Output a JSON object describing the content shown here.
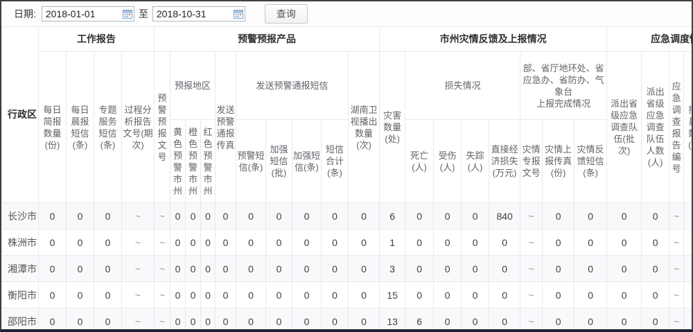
{
  "toolbar": {
    "date_label": "日期:",
    "date_from": "2018-01-01",
    "to_label": "至",
    "date_to": "2018-10-31",
    "query_button": "查询"
  },
  "colors": {
    "input_border": "#a9b7c7",
    "grid_line": "#e8e9ec",
    "row_stripe": "#f8f9fb",
    "frame_border": "#3f3f3f"
  },
  "table": {
    "corner_label": "行政区",
    "groups": [
      "工作报告",
      "预警预报产品",
      "市州灾情反馈及上报情况",
      "应急调度情况"
    ],
    "row2": [
      "每日简报数量(份)",
      "每日晨报短信(条)",
      "专题服务短信(条)",
      "过程分析报告文号(期次)",
      "预警预报文号",
      "预报地区",
      "发送预警通报传真",
      "发送预警通报短信",
      "湖南卫视播出数量(次)",
      "灾害数量(处)",
      "损失情况",
      "部、省厅地环处、省应急办、省防办、气象台\n上报完成情况",
      "派出省级应急调查队伍(批次)",
      "派出省级应急调查队伍人数(人)",
      "应急调查报告编号",
      "排查县区数量(个)"
    ],
    "row3": [
      "黄色预警市州",
      "橙色预警市州",
      "红色预警市州",
      "预警短信(条)",
      "加强短信(批)",
      "加强短信(条)",
      "短信合计(条)",
      "死亡(人)",
      "受伤(人)",
      "失踪(人)",
      "直接经济损失(万元)",
      "灾情专报文号",
      "灾情上报传真(份)",
      "灾情反馈短信(条)"
    ],
    "rows": [
      {
        "region": "长沙市",
        "values": [
          "0",
          "0",
          "0",
          "~",
          "~",
          "0",
          "0",
          "0",
          "0",
          "0",
          "0",
          "0",
          "0",
          "0",
          "6",
          "0",
          "0",
          "0",
          "840",
          "~",
          "0",
          "0",
          "0",
          "0",
          "~"
        ]
      },
      {
        "region": "株洲市",
        "values": [
          "0",
          "0",
          "0",
          "~",
          "~",
          "0",
          "0",
          "0",
          "0",
          "0",
          "0",
          "0",
          "0",
          "0",
          "1",
          "0",
          "0",
          "0",
          "0",
          "~",
          "0",
          "0",
          "0",
          "0",
          "~"
        ]
      },
      {
        "region": "湘潭市",
        "values": [
          "0",
          "0",
          "0",
          "~",
          "~",
          "0",
          "0",
          "0",
          "0",
          "0",
          "0",
          "0",
          "0",
          "0",
          "3",
          "0",
          "0",
          "0",
          "0",
          "~",
          "0",
          "0",
          "0",
          "0",
          "~"
        ]
      },
      {
        "region": "衡阳市",
        "values": [
          "0",
          "0",
          "0",
          "~",
          "~",
          "0",
          "0",
          "0",
          "0",
          "0",
          "0",
          "0",
          "0",
          "0",
          "15",
          "0",
          "0",
          "0",
          "0",
          "~",
          "0",
          "0",
          "0",
          "0",
          "~"
        ]
      },
      {
        "region": "邵阳市",
        "values": [
          "0",
          "0",
          "0",
          "~",
          "~",
          "0",
          "0",
          "0",
          "0",
          "0",
          "0",
          "0",
          "0",
          "0",
          "13",
          "6",
          "0",
          "0",
          "0",
          "~",
          "0",
          "0",
          "0",
          "0",
          "~"
        ]
      }
    ]
  }
}
